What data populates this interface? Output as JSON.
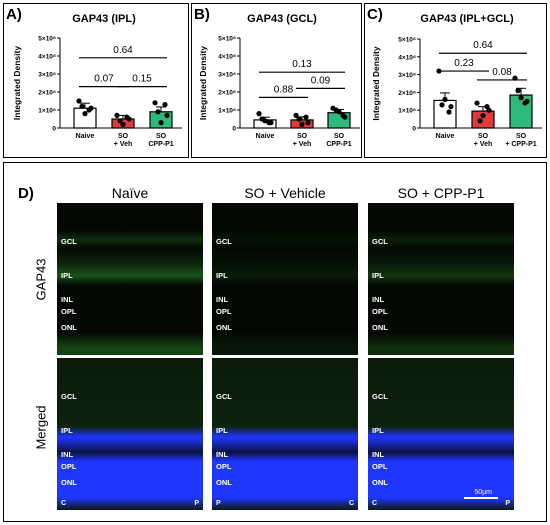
{
  "chart_data": [
    {
      "type": "bar",
      "panel_label": "A)",
      "title": "GAP43 (IPL)",
      "ylabel": "Integrated Density",
      "yticks": [
        "0",
        "1×10⁸",
        "2×10⁸",
        "3×10⁸",
        "4×10⁸",
        "5×10⁸"
      ],
      "ylim": [
        0,
        5
      ],
      "categories": [
        [
          "Naive"
        ],
        [
          "SO",
          "+ Veh"
        ],
        [
          "SO",
          "CPP-P1"
        ]
      ],
      "values": [
        1.1,
        0.5,
        0.9
      ],
      "errors": [
        0.28,
        0.2,
        0.27
      ],
      "points": [
        [
          1.5,
          1.1,
          0.8,
          1.2,
          1.0
        ],
        [
          0.7,
          0.5,
          0.2,
          0.4,
          0.6
        ],
        [
          1.4,
          0.7,
          0.3,
          0.9,
          1.3
        ]
      ],
      "colors": [
        "#ffffff",
        "#e03b3b",
        "#2dba7a"
      ],
      "comparisons": [
        {
          "from": 0,
          "to": 2,
          "label": "0.64",
          "y": 3.9
        },
        {
          "from": 0,
          "to": 1,
          "label": "0.07",
          "y": 2.3
        },
        {
          "from": 1,
          "to": 2,
          "label": "0.15",
          "y": 2.3
        }
      ]
    },
    {
      "type": "bar",
      "panel_label": "B)",
      "title": "GAP43 (GCL)",
      "ylabel": "Integrated Density",
      "yticks": [
        "0",
        "1×10⁸",
        "2×10⁸",
        "3×10⁸",
        "4×10⁸",
        "5×10⁸"
      ],
      "ylim": [
        0,
        5
      ],
      "categories": [
        [
          "Naive"
        ],
        [
          "SO",
          "+ Veh"
        ],
        [
          "SO",
          "CPP-P1"
        ]
      ],
      "values": [
        0.45,
        0.45,
        0.85
      ],
      "errors": [
        0.15,
        0.17,
        0.18
      ],
      "points": [
        [
          0.8,
          0.3,
          0.4,
          0.5,
          0.3
        ],
        [
          0.7,
          0.3,
          0.2,
          0.5,
          0.6
        ],
        [
          1.1,
          0.6,
          0.9,
          1.0,
          0.7
        ]
      ],
      "colors": [
        "#ffffff",
        "#e03b3b",
        "#2dba7a"
      ],
      "comparisons": [
        {
          "from": 0,
          "to": 2,
          "label": "0.13",
          "y": 3.1
        },
        {
          "from": 0,
          "to": 1,
          "label": "0.88",
          "y": 1.7
        },
        {
          "from": 1,
          "to": 2,
          "label": "0.09",
          "y": 2.2
        }
      ]
    },
    {
      "type": "bar",
      "panel_label": "C)",
      "title": "GAP43 (IPL+GCL)",
      "ylabel": "Integrated Density",
      "yticks": [
        "0",
        "1×10⁸",
        "2×10⁸",
        "3×10⁸",
        "4×10⁸",
        "5×10⁸"
      ],
      "ylim": [
        0,
        5
      ],
      "categories": [
        [
          "Naive"
        ],
        [
          "SO",
          "+ Veh"
        ],
        [
          "SO",
          "+ CPP-P1"
        ]
      ],
      "values": [
        1.55,
        0.95,
        1.85
      ],
      "errors": [
        0.42,
        0.25,
        0.38
      ],
      "points": [
        [
          3.2,
          1.2,
          1.6,
          1.3,
          0.9
        ],
        [
          1.4,
          1.0,
          0.7,
          0.4,
          1.2
        ],
        [
          2.8,
          1.5,
          1.7,
          2.1,
          1.4
        ]
      ],
      "colors": [
        "#ffffff",
        "#e03b3b",
        "#2dba7a"
      ],
      "comparisons": [
        {
          "from": 0,
          "to": 2,
          "label": "0.64",
          "y": 4.2
        },
        {
          "from": 0,
          "to": 1,
          "label": "0.23",
          "y": 3.2
        },
        {
          "from": 1,
          "to": 2,
          "label": "0.08",
          "y": 2.7
        }
      ]
    }
  ],
  "panel_d": {
    "label": "D)",
    "columns": [
      "Naïve",
      "SO + Vehicle",
      "SO + CPP-P1"
    ],
    "rows": [
      "GAP43",
      "Merged"
    ],
    "layers": [
      "GCL",
      "IPL",
      "INL",
      "OPL",
      "ONL"
    ],
    "corners": [
      [
        "C",
        "P"
      ],
      [
        "P",
        "C"
      ],
      [
        "C",
        "P"
      ]
    ],
    "scale_label": "50µm",
    "colors": {
      "green": "#2f8f2a",
      "blue": "#1f36ff",
      "dark": "#030803"
    }
  }
}
